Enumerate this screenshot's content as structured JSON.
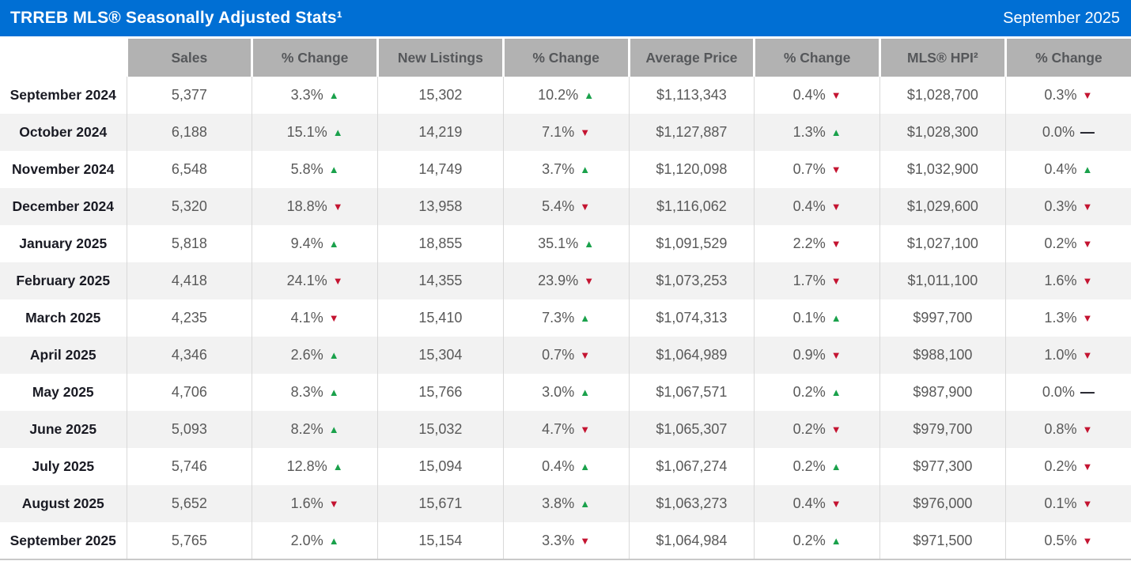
{
  "title_bar": {
    "title": "TRREB MLS® Seasonally Adjusted Stats¹",
    "period": "September 2025"
  },
  "glyphs": {
    "up": "▲",
    "down": "▼",
    "flat": "—"
  },
  "colors": {
    "header_blue": "#006FD4",
    "column_header_gray": "#B2B2B2",
    "row_stripe_gray": "#F2F2F2",
    "up_green": "#1AA14B",
    "down_red": "#C41431",
    "flat_dash": "#191A23",
    "data_text": "#595959",
    "month_text": "#191A23"
  },
  "chart_data": {
    "type": "table",
    "title": "TRREB MLS® Seasonally Adjusted Stats¹",
    "period": "September 2025",
    "columns": [
      "",
      "Sales",
      "% Change",
      "New Listings",
      "% Change",
      "Average Price",
      "% Change",
      "MLS® HPI²",
      "% Change"
    ],
    "rows": [
      {
        "month": "September 2024",
        "sales": "5,377",
        "sales_change": "3.3%",
        "sales_dir": "up",
        "new_listings": "15,302",
        "new_listings_change": "10.2%",
        "new_listings_dir": "up",
        "average_price": "$1,113,343",
        "average_price_change": "0.4%",
        "average_price_dir": "down",
        "hpi": "$1,028,700",
        "hpi_change": "0.3%",
        "hpi_dir": "down"
      },
      {
        "month": "October 2024",
        "sales": "6,188",
        "sales_change": "15.1%",
        "sales_dir": "up",
        "new_listings": "14,219",
        "new_listings_change": "7.1%",
        "new_listings_dir": "down",
        "average_price": "$1,127,887",
        "average_price_change": "1.3%",
        "average_price_dir": "up",
        "hpi": "$1,028,300",
        "hpi_change": "0.0%",
        "hpi_dir": "flat"
      },
      {
        "month": "November 2024",
        "sales": "6,548",
        "sales_change": "5.8%",
        "sales_dir": "up",
        "new_listings": "14,749",
        "new_listings_change": "3.7%",
        "new_listings_dir": "up",
        "average_price": "$1,120,098",
        "average_price_change": "0.7%",
        "average_price_dir": "down",
        "hpi": "$1,032,900",
        "hpi_change": "0.4%",
        "hpi_dir": "up"
      },
      {
        "month": "December 2024",
        "sales": "5,320",
        "sales_change": "18.8%",
        "sales_dir": "down",
        "new_listings": "13,958",
        "new_listings_change": "5.4%",
        "new_listings_dir": "down",
        "average_price": "$1,116,062",
        "average_price_change": "0.4%",
        "average_price_dir": "down",
        "hpi": "$1,029,600",
        "hpi_change": "0.3%",
        "hpi_dir": "down"
      },
      {
        "month": "January 2025",
        "sales": "5,818",
        "sales_change": "9.4%",
        "sales_dir": "up",
        "new_listings": "18,855",
        "new_listings_change": "35.1%",
        "new_listings_dir": "up",
        "average_price": "$1,091,529",
        "average_price_change": "2.2%",
        "average_price_dir": "down",
        "hpi": "$1,027,100",
        "hpi_change": "0.2%",
        "hpi_dir": "down"
      },
      {
        "month": "February 2025",
        "sales": "4,418",
        "sales_change": "24.1%",
        "sales_dir": "down",
        "new_listings": "14,355",
        "new_listings_change": "23.9%",
        "new_listings_dir": "down",
        "average_price": "$1,073,253",
        "average_price_change": "1.7%",
        "average_price_dir": "down",
        "hpi": "$1,011,100",
        "hpi_change": "1.6%",
        "hpi_dir": "down"
      },
      {
        "month": "March 2025",
        "sales": "4,235",
        "sales_change": "4.1%",
        "sales_dir": "down",
        "new_listings": "15,410",
        "new_listings_change": "7.3%",
        "new_listings_dir": "up",
        "average_price": "$1,074,313",
        "average_price_change": "0.1%",
        "average_price_dir": "up",
        "hpi": "$997,700",
        "hpi_change": "1.3%",
        "hpi_dir": "down"
      },
      {
        "month": "April 2025",
        "sales": "4,346",
        "sales_change": "2.6%",
        "sales_dir": "up",
        "new_listings": "15,304",
        "new_listings_change": "0.7%",
        "new_listings_dir": "down",
        "average_price": "$1,064,989",
        "average_price_change": "0.9%",
        "average_price_dir": "down",
        "hpi": "$988,100",
        "hpi_change": "1.0%",
        "hpi_dir": "down"
      },
      {
        "month": "May 2025",
        "sales": "4,706",
        "sales_change": "8.3%",
        "sales_dir": "up",
        "new_listings": "15,766",
        "new_listings_change": "3.0%",
        "new_listings_dir": "up",
        "average_price": "$1,067,571",
        "average_price_change": "0.2%",
        "average_price_dir": "up",
        "hpi": "$987,900",
        "hpi_change": "0.0%",
        "hpi_dir": "flat"
      },
      {
        "month": "June 2025",
        "sales": "5,093",
        "sales_change": "8.2%",
        "sales_dir": "up",
        "new_listings": "15,032",
        "new_listings_change": "4.7%",
        "new_listings_dir": "down",
        "average_price": "$1,065,307",
        "average_price_change": "0.2%",
        "average_price_dir": "down",
        "hpi": "$979,700",
        "hpi_change": "0.8%",
        "hpi_dir": "down"
      },
      {
        "month": "July 2025",
        "sales": "5,746",
        "sales_change": "12.8%",
        "sales_dir": "up",
        "new_listings": "15,094",
        "new_listings_change": "0.4%",
        "new_listings_dir": "up",
        "average_price": "$1,067,274",
        "average_price_change": "0.2%",
        "average_price_dir": "up",
        "hpi": "$977,300",
        "hpi_change": "0.2%",
        "hpi_dir": "down"
      },
      {
        "month": "August 2025",
        "sales": "5,652",
        "sales_change": "1.6%",
        "sales_dir": "down",
        "new_listings": "15,671",
        "new_listings_change": "3.8%",
        "new_listings_dir": "up",
        "average_price": "$1,063,273",
        "average_price_change": "0.4%",
        "average_price_dir": "down",
        "hpi": "$976,000",
        "hpi_change": "0.1%",
        "hpi_dir": "down"
      },
      {
        "month": "September 2025",
        "sales": "5,765",
        "sales_change": "2.0%",
        "sales_dir": "up",
        "new_listings": "15,154",
        "new_listings_change": "3.3%",
        "new_listings_dir": "down",
        "average_price": "$1,064,984",
        "average_price_change": "0.2%",
        "average_price_dir": "up",
        "hpi": "$971,500",
        "hpi_change": "0.5%",
        "hpi_dir": "down"
      }
    ]
  }
}
